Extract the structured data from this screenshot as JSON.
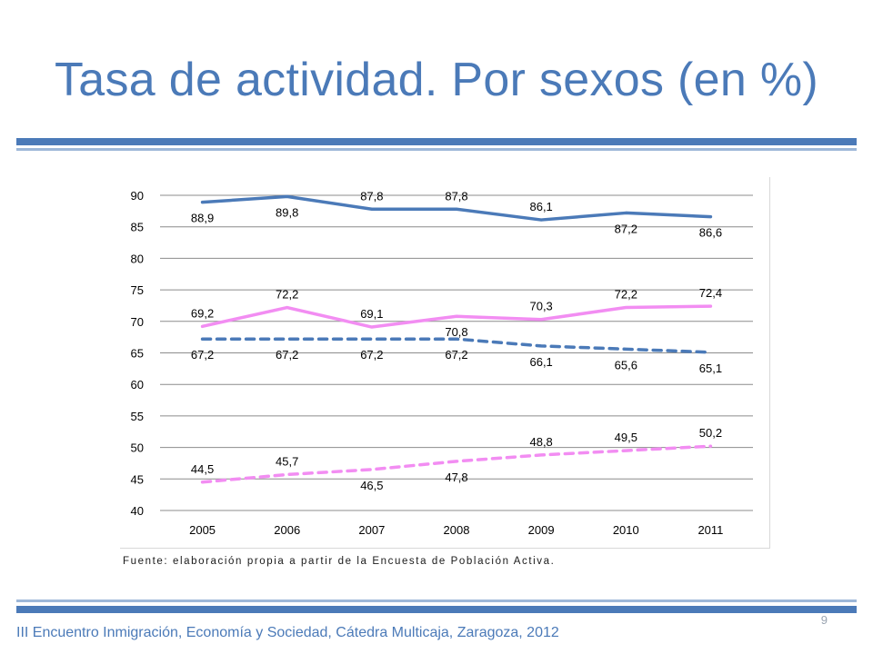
{
  "slide": {
    "title": "Tasa de actividad. Por sexos (en %)",
    "source": "Fuente: elaboración propia a partir de la Encuesta de Población Activa.",
    "footer": "III Encuentro Inmigración, Economía y Sociedad, Cátedra Multicaja, Zaragoza, 2012",
    "page_number": "9"
  },
  "colors": {
    "title": "#4b7ab8",
    "rule": "#4b7ab8",
    "series_blue": "#4b7ab8",
    "series_pink": "#f28df2"
  },
  "chart_data": {
    "type": "line",
    "categories": [
      "2005",
      "2006",
      "2007",
      "2008",
      "2009",
      "2010",
      "2011"
    ],
    "ylim": [
      40,
      90
    ],
    "yticks": [
      "40",
      "45",
      "50",
      "55",
      "60",
      "65",
      "70",
      "75",
      "80",
      "85",
      "90"
    ],
    "grid": true,
    "legend": "none",
    "series": [
      {
        "color": "#4b7ab8",
        "dash": "solid",
        "values": [
          88.9,
          89.8,
          87.8,
          87.8,
          86.1,
          87.2,
          86.6
        ],
        "labels": [
          "88,9",
          "89,8",
          "87,8",
          "87,8",
          "86,1",
          "87,2",
          "86,6"
        ],
        "label_pos": [
          "below",
          "below",
          "above",
          "above",
          "above",
          "below",
          "below"
        ]
      },
      {
        "color": "#f28df2",
        "dash": "solid",
        "values": [
          69.2,
          72.2,
          69.1,
          70.8,
          70.3,
          72.2,
          72.4
        ],
        "labels": [
          "69,2",
          "72,2",
          "69,1",
          "70,8",
          "70,3",
          "72,2",
          "72,4"
        ],
        "label_pos": [
          "above",
          "above",
          "above",
          "below",
          "above",
          "above",
          "above"
        ]
      },
      {
        "color": "#4b7ab8",
        "dash": "dashed",
        "values": [
          67.2,
          67.2,
          67.2,
          67.2,
          66.1,
          65.6,
          65.1
        ],
        "labels": [
          "67,2",
          "67,2",
          "67,2",
          "67,2",
          "66,1",
          "65,6",
          "65,1"
        ],
        "label_pos": [
          "below",
          "below",
          "below",
          "below",
          "below",
          "below",
          "below"
        ]
      },
      {
        "color": "#f28df2",
        "dash": "dashed",
        "values": [
          44.5,
          45.7,
          46.5,
          47.8,
          48.8,
          49.5,
          50.2
        ],
        "labels": [
          "44,5",
          "45,7",
          "46,5",
          "47,8",
          "48,8",
          "49,5",
          "50,2"
        ],
        "label_pos": [
          "above",
          "above",
          "below",
          "below",
          "above",
          "above",
          "above"
        ]
      }
    ]
  }
}
